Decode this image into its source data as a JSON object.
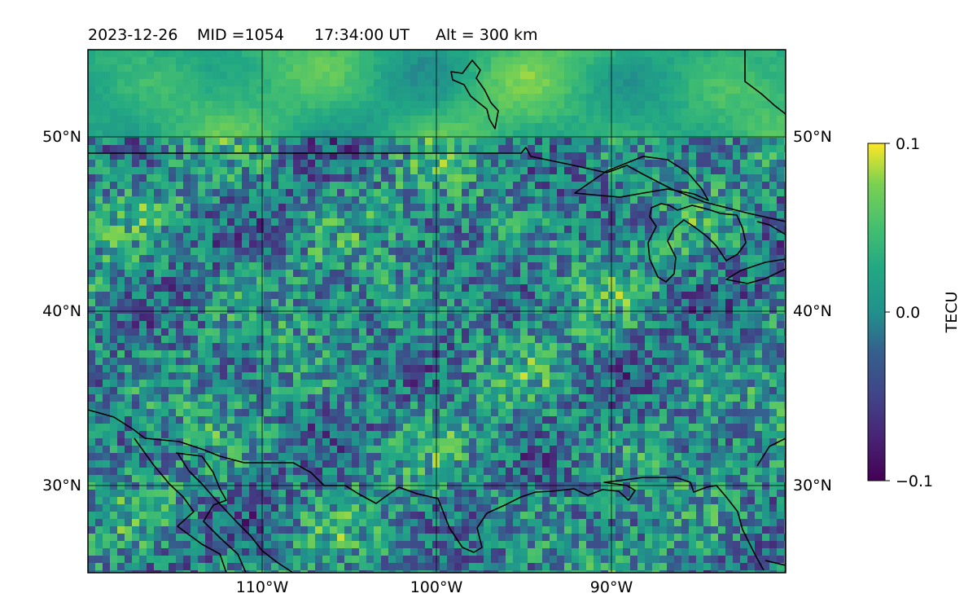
{
  "header": {
    "date": "2023-12-26",
    "mid": "MID =1054",
    "time": "17:34:00  UT",
    "altitude": "Alt = 300 km"
  },
  "map": {
    "lat_ticks": [
      "50°N",
      "40°N",
      "30°N"
    ],
    "lon_ticks": [
      "110°W",
      "100°W",
      "90°W"
    ],
    "lon_range": [
      -120,
      -80
    ],
    "lat_range": [
      25,
      55
    ],
    "data_range": [
      -0.1,
      0.1
    ],
    "colormap": "viridis",
    "gridlines": true
  },
  "colorbar": {
    "label": "TECU",
    "ticks": [
      "0.1",
      "0.0",
      "−0.1"
    ]
  }
}
